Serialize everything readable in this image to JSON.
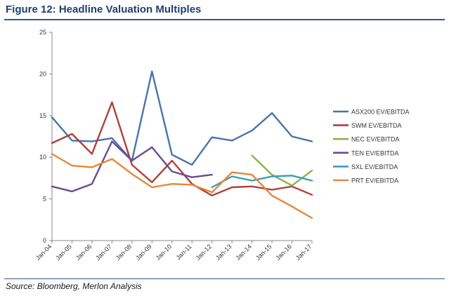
{
  "header": {
    "title": "Figure 12: Headline Valuation Multiples"
  },
  "footer": {
    "source": "Source: Bloomberg, Merlon Analysis"
  },
  "chart_data": {
    "type": "line",
    "title": "",
    "xlabel": "",
    "ylabel": "",
    "ylim": [
      0,
      25
    ],
    "yticks": [
      0,
      5,
      10,
      15,
      20,
      25
    ],
    "grid": false,
    "legend_position": "right",
    "categories": [
      "Jan-04",
      "Jan-05",
      "Jan-06",
      "Jan-07",
      "Jan-08",
      "Jan-09",
      "Jan-10",
      "Jan-11",
      "Jan-12",
      "Jan-13",
      "Jan-14",
      "Jan-15",
      "Jan-16",
      "Jan-17"
    ],
    "series": [
      {
        "name": "ASX200 EV/EBITDA",
        "color": "#4a74a8",
        "values": [
          14.8,
          12.0,
          11.9,
          12.3,
          9.6,
          20.3,
          10.3,
          9.1,
          12.4,
          12.0,
          13.2,
          15.3,
          12.5,
          11.9
        ]
      },
      {
        "name": "SWM EV/EBITDA",
        "color": "#b0403c",
        "values": [
          11.7,
          12.8,
          10.4,
          16.6,
          9.1,
          7.0,
          9.6,
          6.8,
          5.4,
          6.4,
          6.5,
          6.1,
          6.5,
          5.5
        ]
      },
      {
        "name": "NEC EV/EBITDA",
        "color": "#8db14a",
        "values": [
          null,
          null,
          null,
          null,
          null,
          null,
          null,
          null,
          null,
          null,
          10.2,
          7.9,
          6.6,
          8.4
        ]
      },
      {
        "name": "TEN EV/EBITDA",
        "color": "#6b4b93",
        "values": [
          6.5,
          5.9,
          6.8,
          11.9,
          9.6,
          11.2,
          8.3,
          7.6,
          7.9,
          null,
          null,
          null,
          null,
          null
        ]
      },
      {
        "name": "SXL EV/EBITDA",
        "color": "#3a9fb8",
        "values": [
          null,
          null,
          null,
          null,
          null,
          null,
          null,
          null,
          6.4,
          7.7,
          7.2,
          7.7,
          7.8,
          7.2
        ]
      },
      {
        "name": "PRT EV/EBITDA",
        "color": "#e8873a",
        "values": [
          10.4,
          9.0,
          8.8,
          9.8,
          8.0,
          6.4,
          6.8,
          6.7,
          5.8,
          8.2,
          7.9,
          5.4,
          4.1,
          2.7
        ]
      }
    ]
  }
}
